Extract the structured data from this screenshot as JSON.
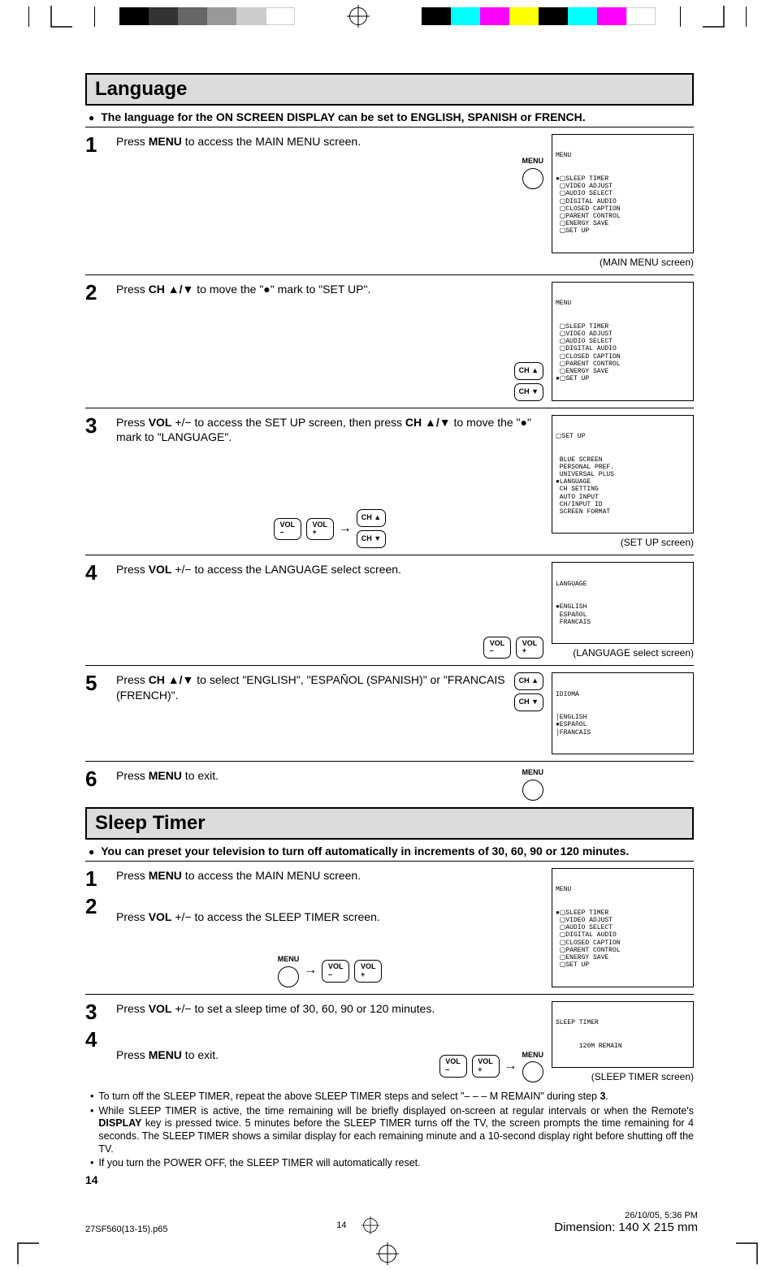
{
  "sections": {
    "language": {
      "title": "Language",
      "intro": "The language for the ON SCREEN DISPLAY can be set to ENGLISH, SPANISH or FRENCH."
    },
    "sleep": {
      "title": "Sleep Timer",
      "intro": "You can preset your television to turn off automatically in increments of 30, 60, 90 or 120 minutes."
    }
  },
  "lang_steps": {
    "s1": "Press <b>MENU</b> to access the MAIN MENU screen.",
    "s2": "Press <b>CH ▲/▼</b> to move the \"●\" mark to \"SET UP\".",
    "s3": "Press <b>VOL</b> +/− to access the SET UP screen, then press <b>CH ▲/▼</b> to move the \"●\" mark to \"LANGUAGE\".",
    "s4": "Press <b>VOL</b> +/− to access the LANGUAGE select screen.",
    "s5": "Press <b>CH ▲/▼</b> to select \"ENGLISH\", \"ESPAÑOL (SPANISH)\" or \"FRANCAIS (FRENCH)\".",
    "s6": "Press <b>MENU</b> to exit."
  },
  "sleep_steps": {
    "s1": "Press <b>MENU</b> to access the MAIN MENU screen.",
    "s2": "Press <b>VOL</b> +/− to access the SLEEP TIMER screen.",
    "s3": "Press <b>VOL</b> +/− to set a sleep time of 30, 60, 90 or 120 minutes.",
    "s4": "Press <b>MENU</b> to exit."
  },
  "sleep_notes": {
    "n1": "To turn off the SLEEP TIMER, repeat the above SLEEP TIMER steps and select \"– – – M REMAIN\" during step <b>3</b>.",
    "n2": "While SLEEP TIMER is active, the time remaining will be briefly displayed on-screen at regular intervals or when the Remote's <b>DISPLAY</b> key is pressed twice. 5 minutes before the SLEEP TIMER turns off the TV, the screen prompts the time remaining for 4 seconds. The SLEEP TIMER shows a similar display for each remaining minute and a 10-second display right before shutting off the TV.",
    "n3": "If you turn the POWER OFF, the SLEEP TIMER will automatically reset."
  },
  "buttons": {
    "menu": "MENU",
    "ch_up": "CH ▲",
    "ch_down": "CH ▼",
    "vol_minus": "VOL\n–",
    "vol_plus": "VOL\n+"
  },
  "osd": {
    "main_menu": {
      "title": "MENU",
      "items": "●▢SLEEP TIMER\n ▢VIDEO ADJUST\n ▢AUDIO SELECT\n ▢DIGITAL AUDIO\n ▢CLOSED CAPTION\n ▢PARENT CONTROL\n ▢ENERGY SAVE\n ▢SET UP",
      "caption": "(MAIN MENU screen)"
    },
    "main_menu_setup": {
      "title": "MENU",
      "items": " ▢SLEEP TIMER\n ▢VIDEO ADJUST\n ▢AUDIO SELECT\n ▢DIGITAL AUDIO\n ▢CLOSED CAPTION\n ▢PARENT CONTROL\n ▢ENERGY SAVE\n●▢SET UP"
    },
    "setup": {
      "title": "▢SET UP",
      "items": " BLUE SCREEN\n PERSONAL PREF.\n UNIVERSAL PLUS\n●LANGUAGE\n CH SETTING\n AUTO INPUT\n CH/INPUT ID\n SCREEN FORMAT",
      "caption": "(SET UP screen)"
    },
    "language": {
      "title": "LANGUAGE",
      "items": "●ENGLISH\n ESPAñOL\n FRANCAIS",
      "caption": "(LANGUAGE select screen)"
    },
    "idioma": {
      "title": "IDIOMA",
      "items": "│ENGLISH\n●ESPAñOL\n│FRANCAIS"
    },
    "sleep_menu": {
      "title": "MENU",
      "items": "●▢SLEEP TIMER\n ▢VIDEO ADJUST\n ▢AUDIO SELECT\n ▢DIGITAL AUDIO\n ▢CLOSED CAPTION\n ▢PARENT CONTROL\n ▢ENERGY SAVE\n ▢SET UP"
    },
    "sleep_timer": {
      "title": "SLEEP TIMER",
      "body": "      120M REMAIN",
      "caption": "(SLEEP TIMER screen)"
    }
  },
  "page_num": "14",
  "footer": {
    "file": "27SF560(13-15).p65",
    "page": "14",
    "date": "26/10/05, 5:36 PM",
    "dim": "Dimension: 140  X 215 mm"
  }
}
